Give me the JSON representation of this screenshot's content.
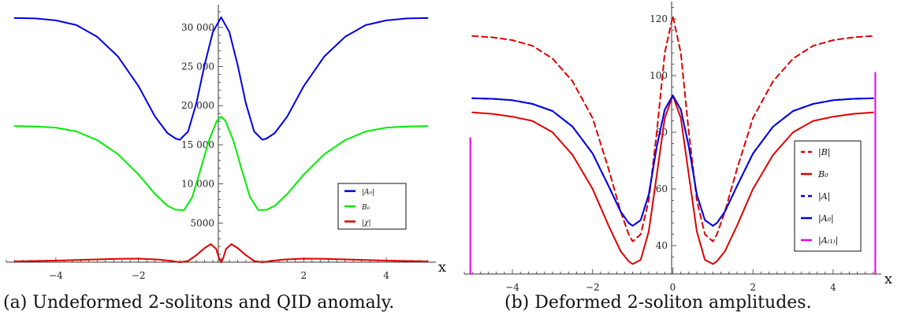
{
  "chart_data": [
    {
      "type": "line",
      "caption": "(a) Undeformed 2-solitons and QID anomaly.",
      "xlabel": "x",
      "xlim": [
        -5.2,
        5.2
      ],
      "ylim": [
        0,
        32500
      ],
      "xticks": [
        -4,
        -2,
        0,
        2,
        4
      ],
      "xtick_labels": [
        "−4",
        "−2",
        "",
        "2",
        "4"
      ],
      "yticks": [
        5000,
        10000,
        15000,
        20000,
        25000,
        30000
      ],
      "ytick_labels": [
        "5000",
        "10 000",
        "15 000",
        "20 000",
        "25 000",
        "30 000"
      ],
      "legend_position": "right",
      "series": [
        {
          "name": "|A₀|",
          "color": "#0000e6",
          "style": "solid",
          "x": [
            -5,
            -4.5,
            -4,
            -3.5,
            -3,
            -2.5,
            -2,
            -1.6,
            -1.3,
            -1.1,
            -1,
            -0.8,
            -0.6,
            -0.4,
            -0.2,
            0,
            0.2,
            0.4,
            0.6,
            0.8,
            1,
            1.1,
            1.3,
            1.6,
            2,
            2.5,
            3,
            3.5,
            4,
            4.5,
            5
          ],
          "y": [
            31200,
            31150,
            30900,
            30300,
            28800,
            26300,
            22500,
            18600,
            16500,
            15800,
            15650,
            16700,
            20300,
            25200,
            29400,
            31300,
            29400,
            25200,
            20300,
            16700,
            15650,
            15800,
            16500,
            18600,
            22500,
            26300,
            28800,
            30300,
            30900,
            31150,
            31200
          ]
        },
        {
          "name": "B₀",
          "color": "#00ee00",
          "style": "solid",
          "x": [
            -5,
            -4.5,
            -4,
            -3.5,
            -3,
            -2.5,
            -2,
            -1.6,
            -1.3,
            -1.1,
            -0.9,
            -0.7,
            -0.5,
            -0.3,
            -0.1,
            0,
            0.1,
            0.3,
            0.5,
            0.7,
            0.9,
            1.1,
            1.3,
            1.6,
            2,
            2.5,
            3,
            3.5,
            4,
            4.5,
            5
          ],
          "y": [
            17400,
            17350,
            17200,
            16700,
            15600,
            13800,
            11200,
            8700,
            7200,
            6700,
            6650,
            8300,
            11800,
            15500,
            18100,
            18600,
            18100,
            15500,
            11800,
            8300,
            6650,
            6700,
            7200,
            8700,
            11200,
            13800,
            15600,
            16700,
            17200,
            17350,
            17400
          ]
        },
        {
          "name": "|χ|",
          "color": "#dd0000",
          "style": "solid",
          "x": [
            -5,
            -4,
            -3,
            -2.5,
            -2,
            -1.5,
            -1.2,
            -1,
            -0.8,
            -0.6,
            -0.4,
            -0.25,
            -0.12,
            -0.05,
            0,
            0.05,
            0.12,
            0.25,
            0.4,
            0.6,
            0.8,
            1,
            1.2,
            1.5,
            2,
            2.5,
            3,
            4,
            5
          ],
          "y": [
            100,
            200,
            350,
            420,
            450,
            330,
            150,
            0,
            150,
            900,
            1800,
            2300,
            1700,
            500,
            0,
            500,
            1700,
            2300,
            1800,
            900,
            150,
            0,
            150,
            330,
            450,
            420,
            350,
            200,
            100
          ]
        }
      ]
    },
    {
      "type": "line",
      "caption": "(b) Deformed 2-soliton amplitudes.",
      "xlabel": "x",
      "xlim": [
        -5.2,
        5.2
      ],
      "ylim": [
        30,
        125
      ],
      "xticks": [
        -4,
        -2,
        0,
        2,
        4
      ],
      "xtick_labels": [
        "−4",
        "−2",
        "0",
        "2",
        "4"
      ],
      "yticks": [
        40,
        60,
        80,
        100,
        120
      ],
      "ytick_labels": [
        "40",
        "60",
        "80",
        "100",
        "120"
      ],
      "legend_position": "right",
      "series": [
        {
          "name": "|B|",
          "color": "#dd0000",
          "style": "dashed",
          "x": [
            -5,
            -4.5,
            -4,
            -3.5,
            -3,
            -2.5,
            -2,
            -1.6,
            -1.3,
            -1.1,
            -1,
            -0.8,
            -0.6,
            -0.4,
            -0.2,
            0,
            0.2,
            0.4,
            0.6,
            0.8,
            1,
            1.1,
            1.3,
            1.6,
            2,
            2.5,
            3,
            3.5,
            4,
            4.5,
            5
          ],
          "y": [
            114,
            113.5,
            112.5,
            110.5,
            106,
            98,
            85,
            67,
            52,
            44,
            41.5,
            44,
            56,
            80,
            108,
            121,
            108,
            80,
            56,
            44,
            41.5,
            44,
            52,
            67,
            85,
            98,
            106,
            110.5,
            112.5,
            113.5,
            114
          ]
        },
        {
          "name": "B₀",
          "color": "#dd0000",
          "style": "solid",
          "x": [
            -5,
            -4.5,
            -4,
            -3.5,
            -3,
            -2.5,
            -2,
            -1.6,
            -1.3,
            -1.1,
            -1,
            -0.8,
            -0.6,
            -0.4,
            -0.2,
            0,
            0.2,
            0.4,
            0.6,
            0.8,
            1,
            1.1,
            1.3,
            1.6,
            2,
            2.5,
            3,
            3.5,
            4,
            4.5,
            5
          ],
          "y": [
            87,
            86.5,
            85.5,
            84,
            80,
            72,
            60,
            47,
            38,
            34.5,
            33.5,
            35,
            45,
            65,
            85,
            93,
            85,
            65,
            45,
            35,
            33.5,
            34.5,
            38,
            47,
            60,
            72,
            80,
            84,
            85.5,
            86.5,
            87
          ]
        },
        {
          "name": "|A|",
          "color": "#0000e6",
          "style": "dashed",
          "x": [
            -5,
            -4.5,
            -4,
            -3.5,
            -3,
            -2.5,
            -2,
            -1.6,
            -1.3,
            -1.1,
            -1,
            -0.8,
            -0.6,
            -0.4,
            -0.2,
            0,
            0.2,
            0.4,
            0.6,
            0.8,
            1,
            1.1,
            1.3,
            1.6,
            2,
            2.5,
            3,
            3.5,
            4,
            4.5,
            5
          ],
          "y": [
            92,
            91.8,
            91.3,
            90,
            87.5,
            82,
            72.5,
            61,
            52,
            48,
            47,
            49,
            58,
            75,
            88,
            93,
            88,
            75,
            58,
            49,
            47,
            48,
            52,
            61,
            72.5,
            82,
            87.5,
            90,
            91.3,
            91.8,
            92
          ]
        },
        {
          "name": "|A₀|",
          "color": "#0000e6",
          "style": "solid",
          "x": [
            -5,
            -4.5,
            -4,
            -3.5,
            -3,
            -2.5,
            -2,
            -1.6,
            -1.3,
            -1.1,
            -1,
            -0.8,
            -0.6,
            -0.4,
            -0.2,
            0,
            0.2,
            0.4,
            0.6,
            0.8,
            1,
            1.1,
            1.3,
            1.6,
            2,
            2.5,
            3,
            3.5,
            4,
            4.5,
            5
          ],
          "y": [
            92,
            91.8,
            91.3,
            90,
            87.5,
            82,
            72.5,
            61,
            52,
            48,
            47,
            49,
            58,
            75,
            88,
            93,
            88,
            75,
            58,
            49,
            47,
            48,
            52,
            61,
            72.5,
            82,
            87.5,
            90,
            91.3,
            91.8,
            92
          ]
        },
        {
          "name": "|A₍₁₎|",
          "color": "#ee00ee",
          "style": "solid",
          "x": [
            -5.05,
            -5.05,
            null,
            5.05,
            5.05
          ],
          "y": [
            30,
            78,
            null,
            30,
            101
          ]
        }
      ]
    }
  ]
}
